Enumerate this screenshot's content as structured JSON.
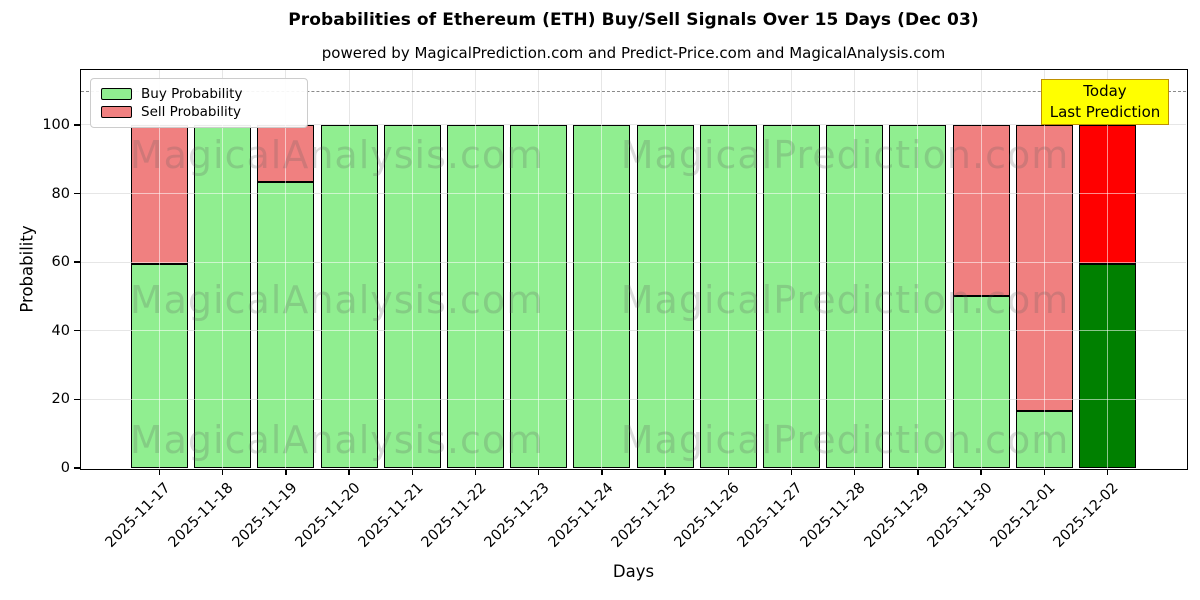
{
  "title": "Probabilities of Ethereum (ETH) Buy/Sell Signals Over 15 Days (Dec 03)",
  "subtitle": "powered by MagicalPrediction.com and Predict-Price.com and MagicalAnalysis.com",
  "legend": {
    "buy_label": "Buy Probability",
    "sell_label": "Sell Probability"
  },
  "annotation": {
    "line1": "Today",
    "line2": "Last Prediction"
  },
  "watermarks": {
    "left": "MagicalAnalysis.com",
    "right": "MagicalPrediction.com"
  },
  "colors": {
    "buy": "#90EE90",
    "sell": "#F08080",
    "today_buy": "#008000",
    "today_sell": "#FF0000",
    "annotation_bg": "#FFFF00",
    "annotation_border": "#BF9000",
    "grid": "#C8C8C8",
    "dashed_line": "#8A8A8A",
    "bar_edge": "#000000"
  },
  "chart_data": {
    "type": "bar",
    "stacked": true,
    "title": "Probabilities of Ethereum (ETH) Buy/Sell Signals Over 15 Days (Dec 03)",
    "xlabel": "Days",
    "ylabel": "Probability",
    "categories": [
      "2025-11-17",
      "2025-11-18",
      "2025-11-19",
      "2025-11-20",
      "2025-11-21",
      "2025-11-22",
      "2025-11-23",
      "2025-11-24",
      "2025-11-25",
      "2025-11-26",
      "2025-11-27",
      "2025-11-28",
      "2025-11-29",
      "2025-11-30",
      "2025-12-01",
      "2025-12-02"
    ],
    "series": [
      {
        "name": "Buy Probability",
        "values": [
          59.5,
          100,
          83.5,
          100,
          100,
          100,
          100,
          100,
          100,
          100,
          100,
          100,
          100,
          50,
          16.7,
          59.5
        ],
        "color": "#90EE90",
        "today_color": "#008000"
      },
      {
        "name": "Sell Probability",
        "values": [
          40.5,
          0,
          16.5,
          0,
          0,
          0,
          0,
          0,
          0,
          0,
          0,
          0,
          0,
          50,
          83.3,
          40.5
        ],
        "color": "#F08080",
        "today_color": "#FF0000"
      }
    ],
    "today_index": 15,
    "yticks": [
      0,
      20,
      40,
      60,
      80,
      100
    ],
    "ylim": [
      0,
      116
    ],
    "dashed_line_y": 110,
    "grid": true,
    "legend_position": "upper left"
  }
}
